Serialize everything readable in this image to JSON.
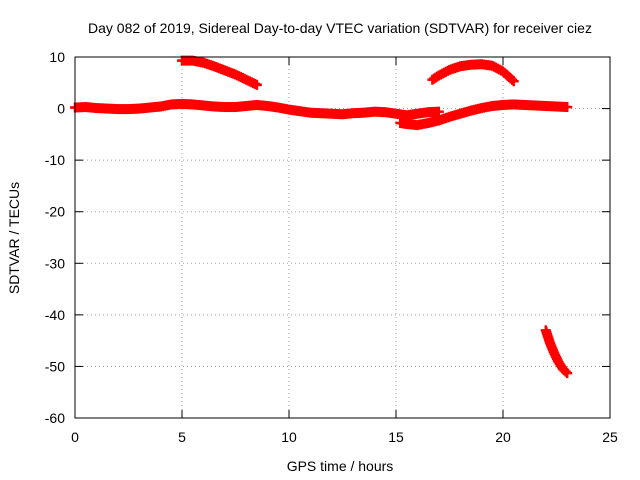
{
  "chart_data": {
    "type": "scatter",
    "title": "Day 082 of 2019, Sidereal Day-to-day VTEC variation (SDTVAR) for receiver ciez",
    "xlabel": "GPS time / hours",
    "ylabel": "SDTVAR / TECUs",
    "xlim": [
      0,
      25
    ],
    "ylim": [
      -60,
      10
    ],
    "xticks": [
      0,
      5,
      10,
      15,
      20,
      25
    ],
    "yticks": [
      10,
      0,
      -10,
      -20,
      -30,
      -40,
      -50,
      -60
    ],
    "grid": true,
    "marker": "+",
    "color": "#ff0000",
    "series": [
      {
        "points": [
          [
            0.0,
            0.2
          ],
          [
            0.5,
            0.3
          ],
          [
            1.0,
            0.1
          ],
          [
            1.5,
            0.0
          ],
          [
            2.0,
            -0.1
          ],
          [
            2.5,
            -0.1
          ],
          [
            3.0,
            0.0
          ],
          [
            3.5,
            0.2
          ],
          [
            4.0,
            0.4
          ],
          [
            4.5,
            0.8
          ],
          [
            5.0,
            0.9
          ],
          [
            5.5,
            0.8
          ],
          [
            6.0,
            0.6
          ],
          [
            6.5,
            0.4
          ],
          [
            7.0,
            0.3
          ],
          [
            7.5,
            0.3
          ],
          [
            8.0,
            0.5
          ],
          [
            8.5,
            0.7
          ],
          [
            9.0,
            0.5
          ],
          [
            9.5,
            0.2
          ],
          [
            10.0,
            -0.2
          ],
          [
            10.5,
            -0.5
          ],
          [
            11.0,
            -0.8
          ],
          [
            11.5,
            -0.9
          ],
          [
            12.0,
            -1.0
          ],
          [
            12.5,
            -1.1
          ],
          [
            13.0,
            -0.9
          ],
          [
            13.5,
            -0.8
          ],
          [
            14.0,
            -0.6
          ],
          [
            14.5,
            -0.7
          ],
          [
            15.0,
            -1.0
          ],
          [
            15.5,
            -1.3
          ],
          [
            16.0,
            -1.0
          ],
          [
            16.5,
            -0.7
          ],
          [
            17.0,
            -0.6
          ]
        ]
      },
      {
        "points": [
          [
            5.0,
            9.3
          ],
          [
            5.5,
            9.3
          ],
          [
            6.0,
            8.9
          ],
          [
            6.5,
            8.2
          ],
          [
            7.0,
            7.4
          ],
          [
            7.5,
            6.6
          ],
          [
            8.0,
            5.6
          ],
          [
            8.5,
            4.6
          ]
        ]
      },
      {
        "points": [
          [
            15.2,
            -2.8
          ],
          [
            15.5,
            -3.0
          ],
          [
            16.0,
            -3.2
          ],
          [
            16.5,
            -2.8
          ],
          [
            17.0,
            -2.3
          ],
          [
            17.5,
            -1.6
          ],
          [
            18.0,
            -1.0
          ],
          [
            18.5,
            -0.4
          ],
          [
            19.0,
            0.1
          ],
          [
            19.5,
            0.5
          ],
          [
            20.0,
            0.7
          ],
          [
            20.5,
            0.8
          ],
          [
            21.0,
            0.7
          ],
          [
            21.5,
            0.6
          ],
          [
            22.0,
            0.5
          ],
          [
            22.5,
            0.4
          ],
          [
            23.0,
            0.3
          ]
        ]
      },
      {
        "points": [
          [
            16.7,
            5.6
          ],
          [
            17.0,
            6.4
          ],
          [
            17.5,
            7.5
          ],
          [
            18.0,
            8.2
          ],
          [
            18.5,
            8.5
          ],
          [
            19.0,
            8.6
          ],
          [
            19.5,
            8.3
          ],
          [
            20.0,
            7.2
          ],
          [
            20.5,
            5.3
          ]
        ]
      },
      {
        "points": [
          [
            22.0,
            -43.0
          ],
          [
            22.2,
            -45.5
          ],
          [
            22.4,
            -47.5
          ],
          [
            22.6,
            -49.2
          ],
          [
            22.8,
            -50.5
          ],
          [
            23.0,
            -51.3
          ]
        ]
      }
    ]
  }
}
